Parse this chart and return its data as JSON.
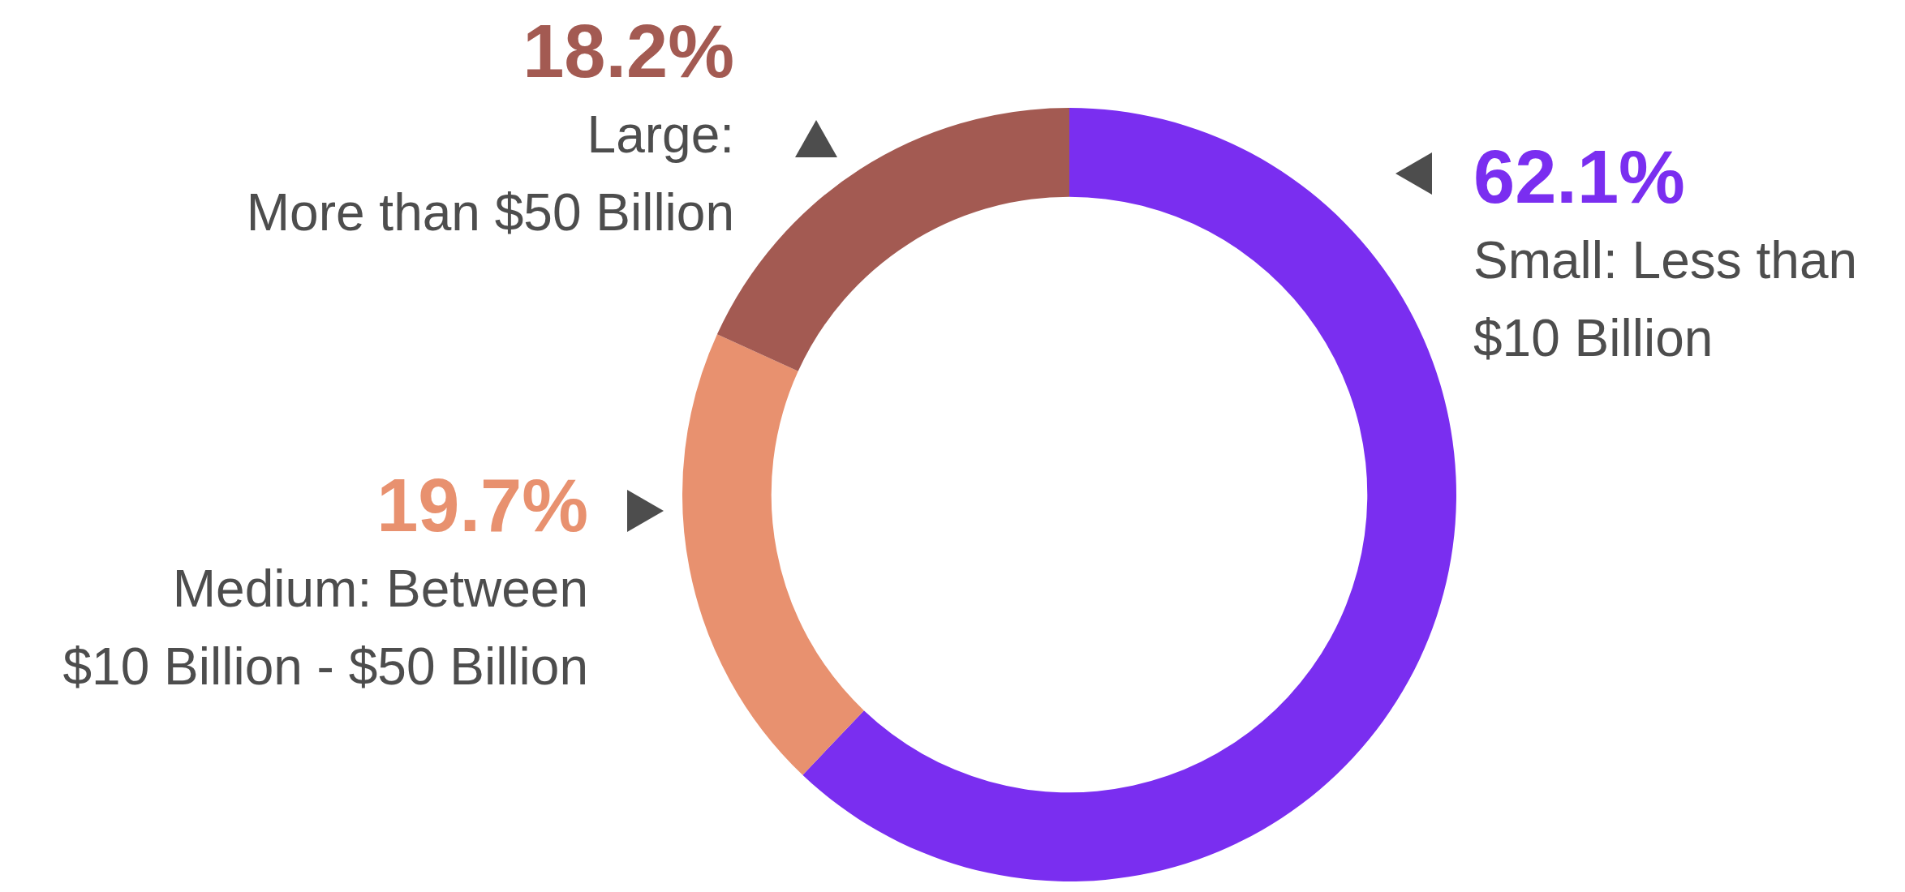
{
  "chart_data": {
    "type": "donut",
    "categories": [
      "Small: Less than\n$10 Billion",
      "Medium: Between\n$10 Billion - $50 Billion",
      "Large:\nMore than $50 Billion"
    ],
    "values": [
      62.1,
      19.7,
      18.2
    ],
    "value_labels": [
      "62.1%",
      "19.7%",
      "18.2%"
    ],
    "colors": [
      "#7a2ef0",
      "#e8916f",
      "#a35a52"
    ],
    "legend": false
  }
}
